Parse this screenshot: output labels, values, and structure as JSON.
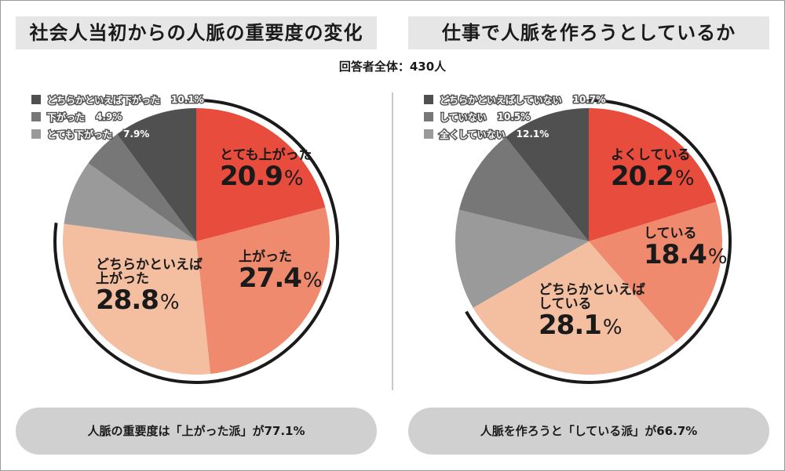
{
  "titles": {
    "left": "社会人当初からの人脈の重要度の変化",
    "right": "仕事で人脈を作ろうとしているか"
  },
  "respondents": "回答者全体：430人",
  "percent_sign": "%",
  "chart_data": [
    {
      "type": "pie",
      "title": "社会人当初からの人脈の重要度の変化",
      "slices": [
        {
          "label": "とても上がった",
          "value": 20.9,
          "color": "#e84c3d"
        },
        {
          "label": "上がった",
          "value": 27.4,
          "color": "#ef8a6e"
        },
        {
          "label": "どちらかといえば上がった",
          "value": 28.8,
          "color": "#f4bea0"
        },
        {
          "label": "とても下がった",
          "value": 7.9,
          "color": "#9a9a9a"
        },
        {
          "label": "下がった",
          "value": 4.9,
          "color": "#777777"
        },
        {
          "label": "どちらかといえば下がった",
          "value": 10.1,
          "color": "#505050"
        }
      ],
      "slice_labels": [
        {
          "lines": [
            "とても上がった"
          ],
          "value": "20.9"
        },
        {
          "lines": [
            "上がった"
          ],
          "value": "27.4"
        },
        {
          "lines": [
            "どちらかといえば",
            "上がった"
          ],
          "value": "28.8"
        }
      ],
      "legend": [
        {
          "label": "どちらかといえば下がった",
          "value": "10.1%",
          "color": "#505050"
        },
        {
          "label": "下がった",
          "value": "4.9%",
          "color": "#777777"
        },
        {
          "label": "とても下がった",
          "value": "7.9%",
          "color": "#9a9a9a"
        }
      ],
      "summary": "人脈の重要度は「上がった派」が77.1%"
    },
    {
      "type": "pie",
      "title": "仕事で人脈を作ろうとしているか",
      "slices": [
        {
          "label": "よくしている",
          "value": 20.2,
          "color": "#e84c3d"
        },
        {
          "label": "している",
          "value": 18.4,
          "color": "#ef8a6e"
        },
        {
          "label": "どちらかといえばしている",
          "value": 28.1,
          "color": "#f4bea0"
        },
        {
          "label": "全くしていない",
          "value": 12.1,
          "color": "#9a9a9a"
        },
        {
          "label": "していない",
          "value": 10.5,
          "color": "#777777"
        },
        {
          "label": "どちらかといえばしていない",
          "value": 10.7,
          "color": "#505050"
        }
      ],
      "slice_labels": [
        {
          "lines": [
            "よくしている"
          ],
          "value": "20.2"
        },
        {
          "lines": [
            "している"
          ],
          "value": "18.4"
        },
        {
          "lines": [
            "どちらかといえば",
            "している"
          ],
          "value": "28.1"
        }
      ],
      "legend": [
        {
          "label": "どちらかといえばしていない",
          "value": "10.7%",
          "color": "#505050"
        },
        {
          "label": "していない",
          "value": "10.5%",
          "color": "#777777"
        },
        {
          "label": "全くしていない",
          "value": "12.1%",
          "color": "#9a9a9a"
        }
      ],
      "summary": "人脈を作ろうと「している派」が66.7%"
    }
  ]
}
